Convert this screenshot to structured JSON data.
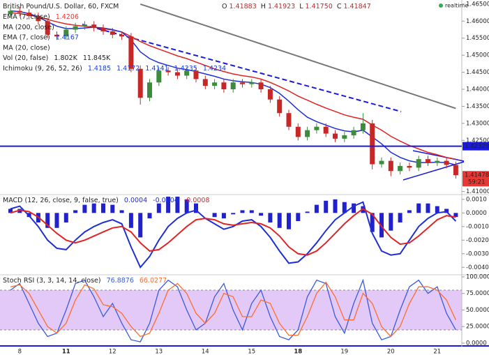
{
  "status": "realtime",
  "chart_data": [
    {
      "type": "candlestick",
      "title": "British Pound/U.S. Dollar, 60, FXCM",
      "ohlc": [
        {
          "key": "O",
          "label": "1.41883"
        },
        {
          "key": "H",
          "label": "1.41923"
        },
        {
          "key": "L",
          "label": "1.41750"
        },
        {
          "key": "C",
          "label": "1.41847"
        }
      ],
      "studies": [
        {
          "name": "EMA (7, close)",
          "values": [
            "1.4206"
          ],
          "color": "#e53935"
        },
        {
          "name": "MA (200, close)",
          "values": [],
          "color": "#555555"
        },
        {
          "name": "EMA (7, close)",
          "values": [
            "1.4167"
          ],
          "color": "#1e3fd0"
        },
        {
          "name": "MA (20, close)",
          "values": [],
          "color": "#555555"
        },
        {
          "name": "Vol (20, false)",
          "values": [
            "1.802K",
            "11.845K"
          ],
          "color": "#222222"
        },
        {
          "name": "Ichimoku (9, 26, 52, 26)",
          "values": [
            "1.4185",
            "1.4172",
            "1.4141",
            "1.4235",
            "1.4234"
          ],
          "color": "#1e3fd0"
        }
      ],
      "categories": [
        null,
        "8",
        null,
        null,
        null,
        null,
        "11",
        null,
        null,
        null,
        null,
        "12",
        null,
        null,
        null,
        null,
        "13",
        null,
        null,
        null,
        null,
        "14",
        null,
        null,
        null,
        null,
        "15",
        null,
        null,
        null,
        null,
        "18",
        null,
        null,
        null,
        null,
        "19",
        null,
        null,
        null,
        null,
        "20",
        null,
        null,
        null,
        null,
        "21",
        null,
        null
      ],
      "open": [
        1.462,
        1.463,
        1.4625,
        1.4615,
        1.46,
        1.456,
        1.4555,
        1.4575,
        1.4585,
        1.459,
        1.458,
        1.457,
        1.456,
        1.4555,
        1.446,
        1.4375,
        1.442,
        1.4455,
        1.445,
        1.444,
        1.4455,
        1.443,
        1.441,
        1.442,
        1.44,
        1.442,
        1.4415,
        1.442,
        1.44,
        1.437,
        1.433,
        1.429,
        1.426,
        1.428,
        1.429,
        1.427,
        1.4255,
        1.4265,
        1.428,
        1.43,
        1.418,
        1.419,
        1.416,
        1.4175,
        1.417,
        1.4195,
        1.4185,
        1.419,
        1.4178
      ],
      "high": [
        1.464,
        1.464,
        1.4635,
        1.4625,
        1.461,
        1.457,
        1.4585,
        1.4595,
        1.46,
        1.46,
        1.459,
        1.458,
        1.457,
        1.4565,
        1.447,
        1.443,
        1.4465,
        1.4465,
        1.446,
        1.4465,
        1.4465,
        1.444,
        1.443,
        1.443,
        1.443,
        1.443,
        1.443,
        1.443,
        1.441,
        1.438,
        1.434,
        1.43,
        1.429,
        1.43,
        1.43,
        1.428,
        1.4275,
        1.429,
        1.433,
        1.431,
        1.42,
        1.42,
        1.4185,
        1.4185,
        1.4205,
        1.4205,
        1.42,
        1.42,
        1.4188
      ],
      "low": [
        1.461,
        1.4615,
        1.4605,
        1.459,
        1.455,
        1.4545,
        1.4545,
        1.4565,
        1.4575,
        1.457,
        1.456,
        1.455,
        1.4545,
        1.445,
        1.4355,
        1.4365,
        1.441,
        1.444,
        1.443,
        1.443,
        1.442,
        1.44,
        1.44,
        1.439,
        1.439,
        1.4405,
        1.4405,
        1.439,
        1.436,
        1.432,
        1.428,
        1.425,
        1.425,
        1.427,
        1.426,
        1.4245,
        1.4245,
        1.4255,
        1.427,
        1.4165,
        1.417,
        1.4145,
        1.415,
        1.416,
        1.416,
        1.4175,
        1.4175,
        1.4168,
        1.4138
      ],
      "close": [
        1.463,
        1.4625,
        1.4615,
        1.46,
        1.456,
        1.4555,
        1.4575,
        1.4585,
        1.459,
        1.458,
        1.457,
        1.456,
        1.4555,
        1.446,
        1.4375,
        1.442,
        1.4455,
        1.445,
        1.444,
        1.4455,
        1.443,
        1.441,
        1.442,
        1.44,
        1.442,
        1.4415,
        1.442,
        1.44,
        1.437,
        1.433,
        1.429,
        1.426,
        1.428,
        1.429,
        1.427,
        1.4255,
        1.4265,
        1.428,
        1.43,
        1.418,
        1.419,
        1.416,
        1.4175,
        1.417,
        1.4195,
        1.4185,
        1.419,
        1.4178,
        1.4148
      ],
      "up_color": "#3d8b3d",
      "down_color": "#c62828",
      "lines": [
        {
          "color": "#777777",
          "values": [
            null,
            null,
            null,
            null,
            null,
            null,
            null,
            null,
            null,
            null,
            null,
            null,
            null,
            null,
            1.465,
            1.4641,
            1.4632,
            1.4623,
            1.4614,
            1.4605,
            1.4596,
            1.4587,
            1.4578,
            1.4569,
            1.456,
            1.4551,
            1.4542,
            1.4533,
            1.4524,
            1.4515,
            1.4506,
            1.4497,
            1.4488,
            1.4479,
            1.447,
            1.4461,
            1.4452,
            1.4443,
            1.4434,
            1.4425,
            1.4416,
            1.4407,
            1.4398,
            1.4389,
            1.438,
            1.4371,
            1.4362,
            1.4353,
            1.4344
          ]
        },
        {
          "color": "#e02424",
          "values": [
            1.4625,
            1.4622,
            1.4618,
            1.4612,
            1.4605,
            1.4598,
            1.4592,
            1.4588,
            1.4585,
            1.4582,
            1.4578,
            1.4574,
            1.4568,
            1.4555,
            1.454,
            1.4528,
            1.4518,
            1.4508,
            1.4498,
            1.449,
            1.448,
            1.447,
            1.446,
            1.4452,
            1.4445,
            1.444,
            1.4436,
            1.443,
            1.442,
            1.4408,
            1.4395,
            1.438,
            1.4368,
            1.4356,
            1.4345,
            1.4335,
            1.4325,
            1.4318,
            1.4312,
            1.4295,
            1.428,
            1.4262,
            1.4248,
            1.4235,
            1.4225,
            1.4215,
            1.4208,
            1.42,
            1.4195
          ]
        },
        {
          "color": "#1e2fd6",
          "values": [
            1.463,
            1.4628,
            1.4622,
            1.4612,
            1.4598,
            1.4585,
            1.4578,
            1.4578,
            1.458,
            1.4582,
            1.458,
            1.4575,
            1.4568,
            1.4545,
            1.451,
            1.449,
            1.4478,
            1.447,
            1.4462,
            1.4458,
            1.4452,
            1.4445,
            1.4438,
            1.443,
            1.4425,
            1.4422,
            1.442,
            1.4415,
            1.4405,
            1.4388,
            1.4365,
            1.434,
            1.4318,
            1.4305,
            1.4295,
            1.4285,
            1.4278,
            1.4275,
            1.428,
            1.426,
            1.424,
            1.4215,
            1.42,
            1.419,
            1.4185,
            1.4185,
            1.4186,
            1.4185,
            1.4178
          ]
        }
      ],
      "hline": {
        "value": 1.42329,
        "color": "#1a1adb"
      },
      "last_price": 1.41478,
      "countdown": "59:21",
      "last_color": "#e53935",
      "ylim": [
        1.4093,
        1.4662
      ],
      "yticks": [
        {
          "value": 1.465,
          "label": "1.46500"
        },
        {
          "value": 1.46,
          "label": "1.46000"
        },
        {
          "value": 1.455,
          "label": "1.45500"
        },
        {
          "value": 1.45,
          "label": "1.45000"
        },
        {
          "value": 1.445,
          "label": "1.44500"
        },
        {
          "value": 1.44,
          "label": "1.44000"
        },
        {
          "value": 1.435,
          "label": "1.43500"
        },
        {
          "value": 1.43,
          "label": "1.43000"
        },
        {
          "value": 1.425,
          "label": "1.42500"
        },
        {
          "value": 1.41,
          "label": "1.41000"
        }
      ]
    },
    {
      "type": "bar",
      "title": "MACD (12, 26, close, 9, false, true)",
      "legend_values": [
        {
          "label": "0.0004",
          "color": "#1e2fd6"
        },
        {
          "label": "-0.0004",
          "color": "#1e2fd6"
        },
        {
          "label": "-0.0008",
          "color": "#e02424"
        }
      ],
      "color": "#2222cc",
      "values": [
        0.0003,
        0.0003,
        -0.0003,
        -0.0007,
        -0.0011,
        -0.0011,
        -0.0007,
        0.0002,
        0.0006,
        0.0007,
        0.0007,
        0.0006,
        0.0002,
        -0.0011,
        -0.0018,
        -0.0004,
        0.0007,
        0.0012,
        0.0012,
        0.001,
        0.0007,
        0,
        -0.0003,
        -0.0004,
        -0.0001,
        0.0002,
        0.0002,
        -0.0002,
        -0.0007,
        -0.0011,
        -0.0012,
        -0.0006,
        0.0001,
        0.0006,
        0.0009,
        0.001,
        0.0008,
        0.0007,
        0.0005,
        -0.0014,
        -0.0018,
        -0.0013,
        -0.0007,
        0.0002,
        0.0007,
        0.0007,
        0.0005,
        0.0003,
        -0.0003
      ],
      "lines": [
        {
          "color": "#1e2fd6",
          "values": [
            0.0003,
            0.0005,
            -0.0002,
            -0.001,
            -0.002,
            -0.0026,
            -0.0027,
            -0.002,
            -0.0014,
            -0.001,
            -0.0007,
            -0.0005,
            -0.0008,
            -0.0025,
            -0.004,
            -0.0032,
            -0.002,
            -0.001,
            -0.0004,
            0,
            0.0002,
            -0.0004,
            -0.0008,
            -0.0012,
            -0.001,
            -0.0006,
            -0.0005,
            -0.001,
            -0.0018,
            -0.0028,
            -0.0037,
            -0.0036,
            -0.003,
            -0.0022,
            -0.0013,
            -0.0005,
            0,
            0.0005,
            0.0008,
            -0.0015,
            -0.0028,
            -0.0031,
            -0.003,
            -0.002,
            -0.001,
            -0.0004,
            0,
            0.0001,
            -0.0006
          ]
        },
        {
          "color": "#e02424",
          "values": [
            0,
            0.0002,
            0.0001,
            -0.0003,
            -0.0009,
            -0.0015,
            -0.002,
            -0.0022,
            -0.002,
            -0.0017,
            -0.0014,
            -0.0011,
            -0.001,
            -0.0014,
            -0.0022,
            -0.0028,
            -0.0027,
            -0.0022,
            -0.0016,
            -0.001,
            -0.0005,
            -0.0004,
            -0.0005,
            -0.0008,
            -0.0009,
            -0.0008,
            -0.0007,
            -0.0008,
            -0.0011,
            -0.0017,
            -0.0025,
            -0.003,
            -0.0031,
            -0.0028,
            -0.0022,
            -0.0015,
            -0.0008,
            -0.0002,
            0.0003,
            -0.0001,
            -0.001,
            -0.0018,
            -0.0023,
            -0.0022,
            -0.0017,
            -0.0011,
            -0.0005,
            -0.0002,
            -0.0003
          ]
        }
      ],
      "ylim": [
        -0.0045,
        0.0013
      ],
      "yticks": [
        {
          "value": 0.001,
          "label": "0.0010"
        },
        {
          "value": 0,
          "label": "0.0000"
        },
        {
          "value": -0.001,
          "label": "-0.0010"
        },
        {
          "value": -0.002,
          "label": "-0.0020"
        },
        {
          "value": -0.003,
          "label": "-0.0030"
        },
        {
          "value": -0.004,
          "label": "-0.0040"
        }
      ]
    },
    {
      "type": "line",
      "title": "Stoch RSI (3, 3, 14, 14, close)",
      "legend_values": [
        {
          "label": "76.8876",
          "color": "#3b5bdb"
        },
        {
          "label": "66.0277",
          "color": "#ff6d2d"
        }
      ],
      "band": [
        20,
        80
      ],
      "band_color": "#cfa5f2",
      "series": [
        {
          "color": "#3b5bdb",
          "values": [
            80,
            90,
            60,
            30,
            10,
            15,
            50,
            90,
            95,
            70,
            40,
            60,
            30,
            5,
            2,
            30,
            80,
            95,
            85,
            50,
            20,
            30,
            70,
            90,
            50,
            20,
            60,
            80,
            40,
            10,
            5,
            20,
            70,
            95,
            90,
            40,
            15,
            60,
            95,
            30,
            5,
            10,
            50,
            85,
            95,
            75,
            85,
            45,
            20
          ]
        },
        {
          "color": "#ff6d2d",
          "values": [
            85,
            88,
            75,
            50,
            25,
            15,
            30,
            65,
            88,
            82,
            58,
            55,
            45,
            25,
            10,
            15,
            45,
            80,
            90,
            75,
            45,
            30,
            45,
            75,
            70,
            40,
            40,
            65,
            60,
            30,
            12,
            12,
            40,
            75,
            92,
            70,
            35,
            35,
            75,
            60,
            25,
            10,
            25,
            60,
            85,
            85,
            80,
            65,
            35
          ]
        }
      ],
      "ylim": [
        -5.3,
        102.1
      ],
      "yticks": [
        {
          "value": 100,
          "label": "100.0000"
        },
        {
          "value": 75,
          "label": "75.0000"
        },
        {
          "value": 50,
          "label": "50.0000"
        },
        {
          "value": 25,
          "label": "25.0000"
        },
        {
          "value": 0,
          "label": "0.0000"
        }
      ]
    }
  ]
}
